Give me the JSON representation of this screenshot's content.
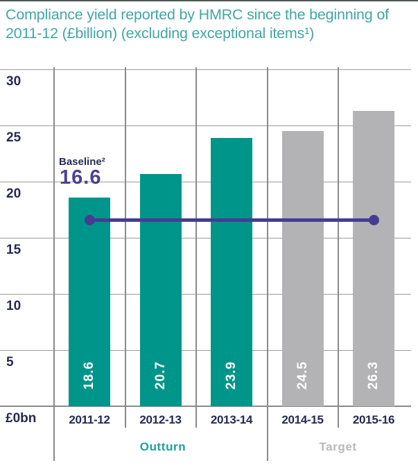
{
  "chart_data": {
    "type": "bar",
    "title": "Compliance yield reported by HMRC since the beginning of 2011-12 (£billion) (excluding exceptional items¹)",
    "title_color": "#41a7a2",
    "categories": [
      "2011-12",
      "2012-13",
      "2013-14",
      "2014-15",
      "2015-16"
    ],
    "series": [
      {
        "name": "Outturn",
        "values": [
          18.6,
          20.7,
          23.9,
          null,
          null
        ],
        "color": "#00958b",
        "label_color": "#1ba39c"
      },
      {
        "name": "Target",
        "values": [
          null,
          null,
          null,
          24.5,
          26.3
        ],
        "color": "#b3b3b5",
        "label_color": "#b9b9bb"
      }
    ],
    "bar_value_labels": [
      "18.6",
      "20.7",
      "23.9",
      "24.5",
      "26.3"
    ],
    "baseline": {
      "label": "Baseline²",
      "value": 16.6,
      "value_text": "16.6",
      "line_color": "#443d90",
      "label_color": "#272c55",
      "value_color": "#4a4292"
    },
    "yticks": [
      5,
      10,
      15,
      20,
      25,
      30
    ],
    "ylim": [
      0,
      30
    ],
    "y_axis_bottom_label": "£0bn",
    "grid": true,
    "group_labels": [
      {
        "text": "Outturn",
        "categories": [
          "2011-12",
          "2012-13",
          "2013-14"
        ]
      },
      {
        "text": "Target",
        "categories": [
          "2014-15",
          "2015-16"
        ]
      }
    ],
    "axis_text_color": "#242a52",
    "gridline_color": "#9c9c9c"
  }
}
